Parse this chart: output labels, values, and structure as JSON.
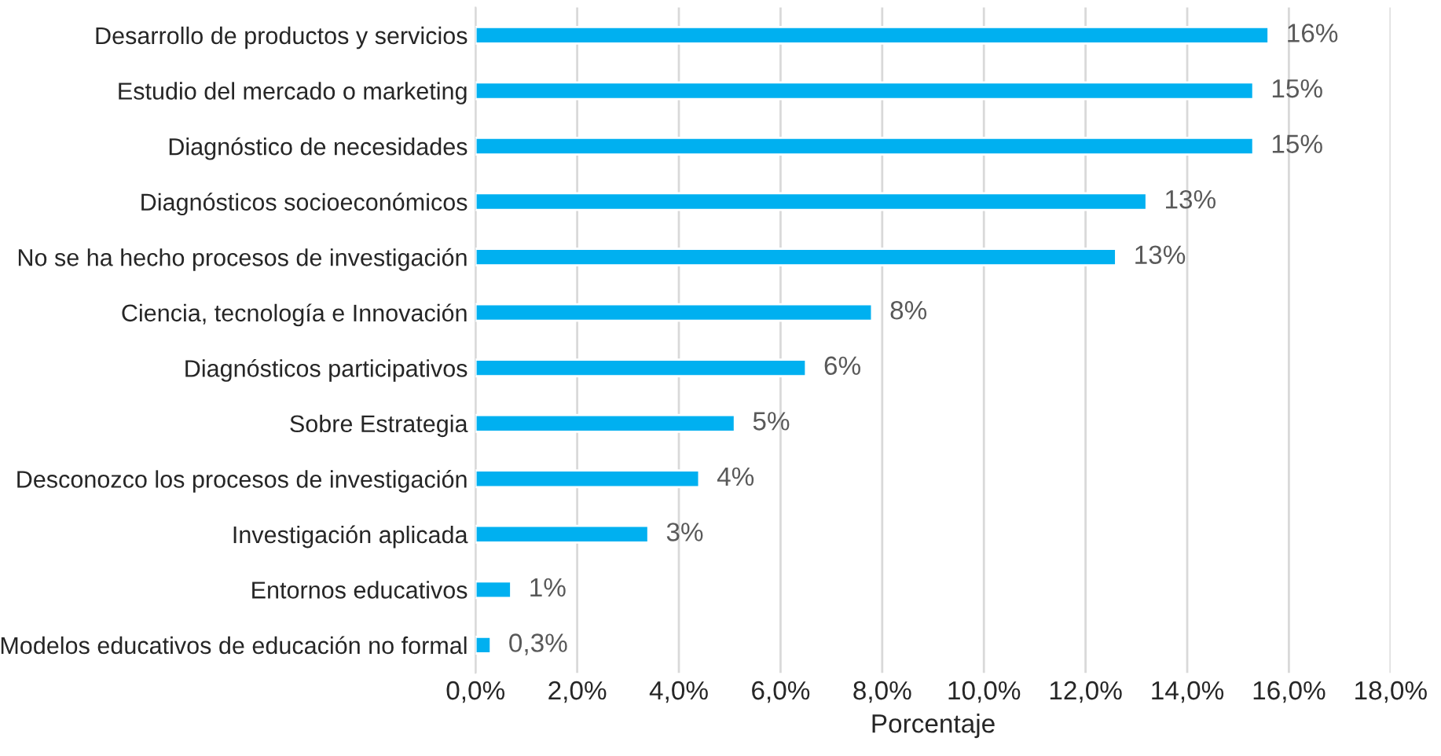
{
  "chart_data": {
    "type": "bar",
    "orientation": "horizontal",
    "xlabel": "Porcentaje",
    "categories": [
      "Desarrollo de productos y servicios",
      "Estudio del mercado o marketing",
      "Diagnóstico de necesidades",
      "Diagnósticos socioeconómicos",
      "No se ha hecho procesos de investigación",
      "Ciencia, tecnología e Innovación",
      "Diagnósticos participativos",
      "Sobre Estrategia",
      "Desconozco los procesos de investigación",
      "Investigación aplicada",
      "Entornos educativos",
      "Modelos educativos de educación no formal"
    ],
    "values": [
      15.6,
      15.3,
      15.3,
      13.2,
      12.6,
      7.8,
      6.5,
      5.1,
      4.4,
      3.4,
      0.7,
      0.3
    ],
    "value_labels": [
      "16%",
      "15%",
      "15%",
      "13%",
      "13%",
      "8%",
      "6%",
      "5%",
      "4%",
      "3%",
      "1%",
      "0,3%"
    ],
    "color": "#00b0f0",
    "xlim": [
      0,
      18
    ],
    "xticks": [
      {
        "value": 0,
        "label": "0,0%"
      },
      {
        "value": 2,
        "label": "2,0%"
      },
      {
        "value": 4,
        "label": "4,0%"
      },
      {
        "value": 6,
        "label": "6,0%"
      },
      {
        "value": 8,
        "label": "8,0%"
      },
      {
        "value": 10,
        "label": "10,0%"
      },
      {
        "value": 12,
        "label": "12,0%"
      },
      {
        "value": 14,
        "label": "14,0%"
      },
      {
        "value": 16,
        "label": "16,0%"
      },
      {
        "value": 18,
        "label": "18,0%"
      }
    ],
    "grid": "x",
    "legend": false
  }
}
